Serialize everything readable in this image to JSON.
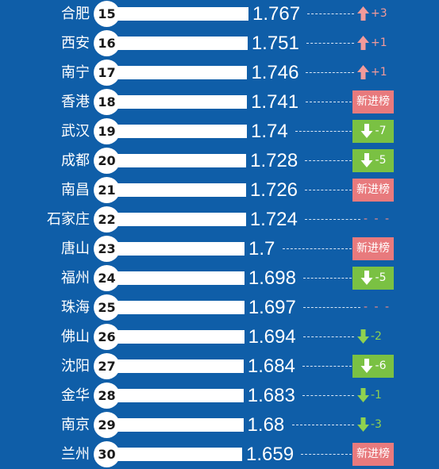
{
  "colors": {
    "background": "#0f5ea8",
    "bar": "#ffffff",
    "up": "#f29a9a",
    "new_badge": "#e87a7d",
    "down_badge": "#7ac143",
    "down_text": "#8fd14f"
  },
  "chart_data": {
    "type": "bar",
    "orientation": "horizontal",
    "categories": [
      "合肥",
      "西安",
      "南宁",
      "香港",
      "武汉",
      "成都",
      "南昌",
      "石家庄",
      "唐山",
      "福州",
      "珠海",
      "佛山",
      "沈阳",
      "金华",
      "南京",
      "兰州"
    ],
    "ranks": [
      15,
      16,
      17,
      18,
      19,
      20,
      21,
      22,
      23,
      24,
      25,
      26,
      27,
      28,
      29,
      30
    ],
    "values": [
      1.767,
      1.751,
      1.746,
      1.741,
      1.74,
      1.728,
      1.726,
      1.724,
      1.7,
      1.698,
      1.697,
      1.694,
      1.684,
      1.683,
      1.68,
      1.659
    ],
    "value_labels": [
      "1.767",
      "1.751",
      "1.746",
      "1.741",
      "1.74",
      "1.728",
      "1.726",
      "1.724",
      "1.7",
      "1.698",
      "1.697",
      "1.694",
      "1.684",
      "1.683",
      "1.68",
      "1.659"
    ],
    "changes": [
      {
        "kind": "up",
        "text": "+3"
      },
      {
        "kind": "up",
        "text": "+1"
      },
      {
        "kind": "up",
        "text": "+1"
      },
      {
        "kind": "new",
        "text": "新进榜"
      },
      {
        "kind": "down-box",
        "text": "-7"
      },
      {
        "kind": "down-box",
        "text": "-5"
      },
      {
        "kind": "new",
        "text": "新进榜"
      },
      {
        "kind": "same",
        "text": "- - -"
      },
      {
        "kind": "new",
        "text": "新进榜"
      },
      {
        "kind": "down-box",
        "text": "-5"
      },
      {
        "kind": "same",
        "text": "- - -"
      },
      {
        "kind": "down",
        "text": "-2"
      },
      {
        "kind": "down-box",
        "text": "-6"
      },
      {
        "kind": "down",
        "text": "-1"
      },
      {
        "kind": "down",
        "text": "-3"
      },
      {
        "kind": "new",
        "text": "新进榜"
      }
    ]
  }
}
